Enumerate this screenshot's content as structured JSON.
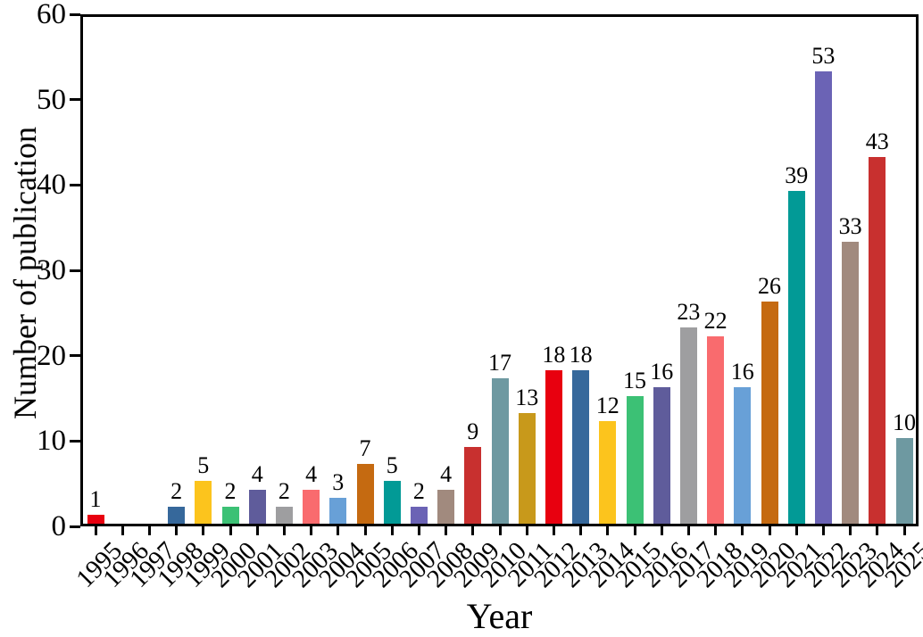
{
  "chart_data": {
    "type": "bar",
    "title": "",
    "xlabel": "Year",
    "ylabel": "Number of publication",
    "ylim": [
      0,
      60
    ],
    "yticks": [
      0,
      10,
      20,
      30,
      40,
      50,
      60
    ],
    "grid": false,
    "legend": "none",
    "value_labels_shown": true,
    "bars": [
      {
        "year": "1995",
        "value": 1,
        "color": "#e8000f"
      },
      {
        "year": "1996",
        "value": 0,
        "color": null
      },
      {
        "year": "1997",
        "value": 0,
        "color": null
      },
      {
        "year": "1998",
        "value": 2,
        "color": "#36689b"
      },
      {
        "year": "1999",
        "value": 5,
        "color": "#fcc41d"
      },
      {
        "year": "2000",
        "value": 2,
        "color": "#3cc175"
      },
      {
        "year": "2001",
        "value": 4,
        "color": "#5f5c9b"
      },
      {
        "year": "2002",
        "value": 2,
        "color": "#9e9ea0"
      },
      {
        "year": "2003",
        "value": 4,
        "color": "#f96b6e"
      },
      {
        "year": "2004",
        "value": 3,
        "color": "#68a0d7"
      },
      {
        "year": "2005",
        "value": 7,
        "color": "#c56a11"
      },
      {
        "year": "2006",
        "value": 5,
        "color": "#029a96"
      },
      {
        "year": "2007",
        "value": 2,
        "color": "#6b63b5"
      },
      {
        "year": "2008",
        "value": 4,
        "color": "#a18a7e"
      },
      {
        "year": "2009",
        "value": 9,
        "color": "#c8302f"
      },
      {
        "year": "2010",
        "value": 17,
        "color": "#6e99a1"
      },
      {
        "year": "2011",
        "value": 13,
        "color": "#c8991b"
      },
      {
        "year": "2012",
        "value": 18,
        "color": "#e8000f"
      },
      {
        "year": "2013",
        "value": 18,
        "color": "#36689b"
      },
      {
        "year": "2014",
        "value": 12,
        "color": "#fcc41d"
      },
      {
        "year": "2015",
        "value": 15,
        "color": "#3cc175"
      },
      {
        "year": "2016",
        "value": 16,
        "color": "#5f5c9b"
      },
      {
        "year": "2017",
        "value": 23,
        "color": "#9e9ea0"
      },
      {
        "year": "2018",
        "value": 22,
        "color": "#f96b6e"
      },
      {
        "year": "2019",
        "value": 16,
        "color": "#68a0d7"
      },
      {
        "year": "2020",
        "value": 26,
        "color": "#c56a11"
      },
      {
        "year": "2021",
        "value": 39,
        "color": "#029a96"
      },
      {
        "year": "2022",
        "value": 53,
        "color": "#6b63b5"
      },
      {
        "year": "2023",
        "value": 33,
        "color": "#a18a7e"
      },
      {
        "year": "2024",
        "value": 43,
        "color": "#c8302f"
      },
      {
        "year": "2025",
        "value": 10,
        "color": "#6e99a1"
      }
    ]
  },
  "colors": {
    "axis": "#000000",
    "text": "#000000",
    "background": "#ffffff"
  }
}
